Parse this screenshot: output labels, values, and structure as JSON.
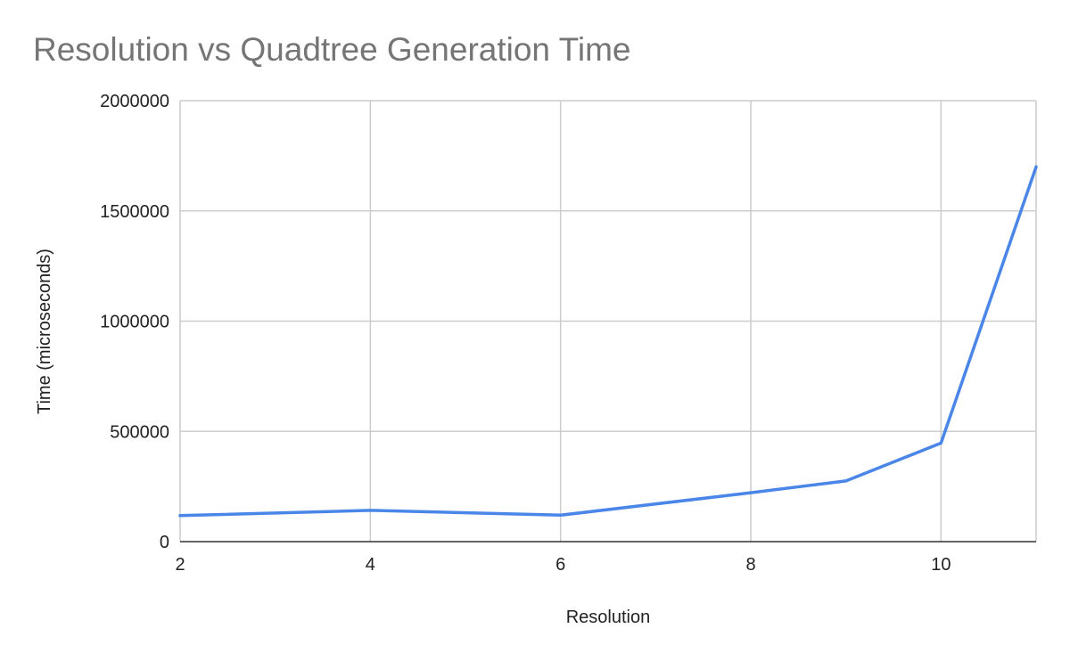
{
  "chart_data": {
    "type": "line",
    "title": "Resolution vs Quadtree Generation Time",
    "xlabel": "Resolution",
    "ylabel": "Time (microseconds)",
    "xlim": [
      2,
      11
    ],
    "ylim": [
      0,
      2000000
    ],
    "x_ticks": [
      2,
      4,
      6,
      8,
      10
    ],
    "y_ticks": [
      0,
      500000,
      1000000,
      1500000,
      2000000
    ],
    "y_tick_labels": [
      "0",
      "500000",
      "1000000",
      "1500000",
      "2000000"
    ],
    "grid": true,
    "legend": "none",
    "series": [
      {
        "color": "#4a86e8",
        "x": [
          2,
          4,
          6,
          8,
          9,
          10,
          11
        ],
        "y": [
          118000,
          142000,
          120000,
          222000,
          275000,
          447000,
          1700000
        ]
      }
    ]
  }
}
